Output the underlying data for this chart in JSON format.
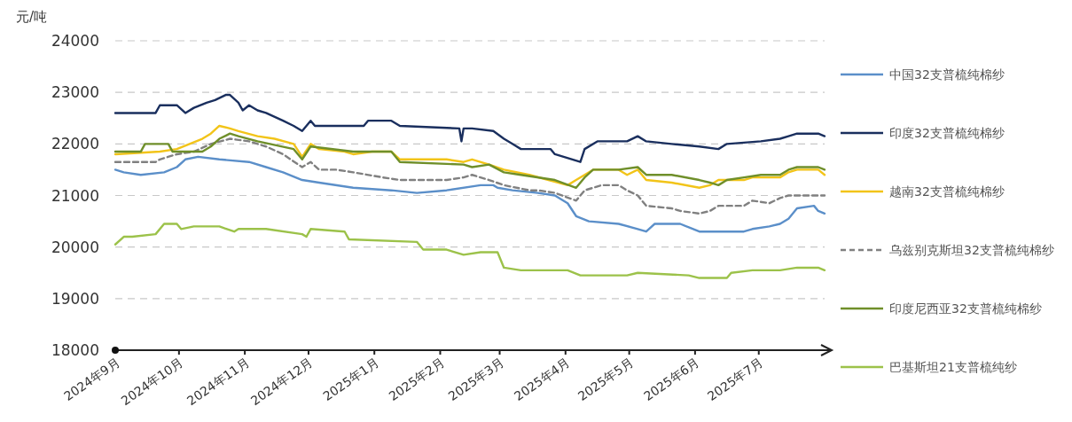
{
  "chart_data": {
    "type": "line",
    "ylabel": "元/吨",
    "ylim": [
      18000,
      24000
    ],
    "yticks": [
      18000,
      19000,
      20000,
      21000,
      22000,
      23000,
      24000
    ],
    "xlim": [
      "2024-09-01",
      "2025-08-01"
    ],
    "xticks": [
      {
        "value": "2024-09",
        "label": "2024年9月"
      },
      {
        "value": "2024-10",
        "label": "2024年10月"
      },
      {
        "value": "2024-11",
        "label": "2024年11月"
      },
      {
        "value": "2024-12",
        "label": "2024年12月"
      },
      {
        "value": "2025-01",
        "label": "2025年1月"
      },
      {
        "value": "2025-02",
        "label": "2025年2月"
      },
      {
        "value": "2025-03",
        "label": "2025年3月"
      },
      {
        "value": "2025-04",
        "label": "2025年4月"
      },
      {
        "value": "2025-05",
        "label": "2025年5月"
      },
      {
        "value": "2025-06",
        "label": "2025年6月"
      },
      {
        "value": "2025-07",
        "label": "2025年7月"
      }
    ],
    "grid": "y",
    "legend": "right",
    "series": [
      {
        "name": "中国32支普梳纯棉纱",
        "color": "#5b8fc9",
        "line_style": "solid",
        "x": [
          "2024-09-01",
          "2024-09-05",
          "2024-09-13",
          "2024-09-24",
          "2024-09-30",
          "2024-10-04",
          "2024-10-10",
          "2024-10-20",
          "2024-11-03",
          "2024-11-11",
          "2024-11-19",
          "2024-11-28",
          "2024-12-06",
          "2024-12-22",
          "2025-01-09",
          "2025-01-21",
          "2025-02-04",
          "2025-02-20",
          "2025-02-26",
          "2025-02-28",
          "2025-03-07",
          "2025-03-19",
          "2025-03-27",
          "2025-04-02",
          "2025-04-06",
          "2025-04-12",
          "2025-04-26",
          "2025-05-05",
          "2025-05-09",
          "2025-05-13",
          "2025-05-25",
          "2025-06-03",
          "2025-06-24",
          "2025-06-28",
          "2025-07-06",
          "2025-07-11",
          "2025-07-15",
          "2025-07-19",
          "2025-07-27",
          "2025-07-29",
          "2025-08-01"
        ],
        "values": [
          21500,
          21450,
          21400,
          21450,
          21550,
          21700,
          21750,
          21700,
          21650,
          21550,
          21450,
          21300,
          21250,
          21150,
          21100,
          21050,
          21100,
          21200,
          21200,
          21150,
          21100,
          21050,
          21000,
          20850,
          20600,
          20500,
          20450,
          20350,
          20300,
          20450,
          20450,
          20300,
          20300,
          20350,
          20400,
          20450,
          20550,
          20750,
          20800,
          20700,
          20650
        ]
      },
      {
        "name": "印度32支普梳纯棉纱",
        "color": "#1a2f5e",
        "line_style": "solid",
        "x": [
          "2024-09-01",
          "2024-09-20",
          "2024-09-22",
          "2024-09-30",
          "2024-10-04",
          "2024-10-08",
          "2024-10-14",
          "2024-10-18",
          "2024-10-23",
          "2024-10-25",
          "2024-10-29",
          "2024-10-31",
          "2024-11-03",
          "2024-11-07",
          "2024-11-11",
          "2024-11-19",
          "2024-11-24",
          "2024-11-28",
          "2024-12-02",
          "2024-12-04",
          "2024-12-27",
          "2024-12-29",
          "2025-01-09",
          "2025-01-13",
          "2025-02-10",
          "2025-02-11",
          "2025-02-12",
          "2025-02-16",
          "2025-02-26",
          "2025-03-03",
          "2025-03-07",
          "2025-03-11",
          "2025-03-25",
          "2025-03-27",
          "2025-04-08",
          "2025-04-10",
          "2025-04-16",
          "2025-04-30",
          "2025-05-05",
          "2025-05-09",
          "2025-05-21",
          "2025-06-03",
          "2025-06-12",
          "2025-06-16",
          "2025-07-02",
          "2025-07-11",
          "2025-07-15",
          "2025-07-19",
          "2025-07-29",
          "2025-08-01"
        ],
        "values": [
          22600,
          22600,
          22750,
          22750,
          22600,
          22700,
          22800,
          22850,
          22950,
          22950,
          22800,
          22650,
          22750,
          22650,
          22600,
          22450,
          22350,
          22250,
          22450,
          22350,
          22350,
          22450,
          22450,
          22350,
          22300,
          22050,
          22300,
          22300,
          22250,
          22100,
          22000,
          21900,
          21900,
          21800,
          21650,
          21900,
          22050,
          22050,
          22150,
          22050,
          22000,
          21950,
          21900,
          22000,
          22050,
          22100,
          22150,
          22200,
          22200,
          22150
        ]
      },
      {
        "name": "越南32支普梳纯棉纱",
        "color": "#f2c419",
        "line_style": "solid",
        "x": [
          "2024-09-01",
          "2024-09-22",
          "2024-09-30",
          "2024-10-12",
          "2024-10-16",
          "2024-10-20",
          "2024-10-25",
          "2024-10-29",
          "2024-11-07",
          "2024-11-15",
          "2024-11-24",
          "2024-11-28",
          "2024-12-02",
          "2024-12-06",
          "2024-12-18",
          "2024-12-22",
          "2024-12-31",
          "2025-01-09",
          "2025-01-13",
          "2025-02-04",
          "2025-02-12",
          "2025-02-16",
          "2025-02-24",
          "2025-03-03",
          "2025-03-15",
          "2025-04-02",
          "2025-04-06",
          "2025-04-10",
          "2025-04-14",
          "2025-04-26",
          "2025-04-30",
          "2025-05-05",
          "2025-05-09",
          "2025-05-21",
          "2025-06-03",
          "2025-06-08",
          "2025-06-12",
          "2025-06-24",
          "2025-06-28",
          "2025-07-11",
          "2025-07-15",
          "2025-07-19",
          "2025-07-29",
          "2025-08-01"
        ],
        "values": [
          21800,
          21850,
          21900,
          22100,
          22200,
          22350,
          22300,
          22250,
          22150,
          22100,
          22000,
          21750,
          22000,
          21900,
          21850,
          21800,
          21850,
          21850,
          21700,
          21700,
          21650,
          21700,
          21600,
          21500,
          21400,
          21200,
          21300,
          21400,
          21500,
          21500,
          21400,
          21500,
          21300,
          21250,
          21150,
          21200,
          21300,
          21300,
          21350,
          21350,
          21450,
          21500,
          21500,
          21400
        ]
      },
      {
        "name": "乌兹别克斯坦32支普梳纯棉纱",
        "color": "#808080",
        "line_style": "dashed",
        "x": [
          "2024-09-01",
          "2024-09-20",
          "2024-09-22",
          "2024-09-30",
          "2024-10-08",
          "2024-10-16",
          "2024-10-25",
          "2024-11-03",
          "2024-11-11",
          "2024-11-19",
          "2024-11-28",
          "2024-12-02",
          "2024-12-06",
          "2024-12-14",
          "2024-12-22",
          "2025-01-05",
          "2025-01-13",
          "2025-02-04",
          "2025-02-12",
          "2025-02-16",
          "2025-02-24",
          "2025-03-03",
          "2025-03-15",
          "2025-03-19",
          "2025-03-27",
          "2025-04-06",
          "2025-04-10",
          "2025-04-18",
          "2025-04-26",
          "2025-04-30",
          "2025-05-05",
          "2025-05-09",
          "2025-05-21",
          "2025-05-25",
          "2025-06-03",
          "2025-06-08",
          "2025-06-12",
          "2025-06-24",
          "2025-06-28",
          "2025-07-06",
          "2025-07-11",
          "2025-07-15",
          "2025-08-01"
        ],
        "values": [
          21650,
          21650,
          21700,
          21800,
          21850,
          22000,
          22100,
          22050,
          21950,
          21800,
          21550,
          21650,
          21500,
          21500,
          21450,
          21350,
          21300,
          21300,
          21350,
          21400,
          21300,
          21200,
          21100,
          21100,
          21050,
          20900,
          21100,
          21200,
          21200,
          21100,
          21000,
          20800,
          20750,
          20700,
          20650,
          20700,
          20800,
          20800,
          20900,
          20850,
          20950,
          21000,
          21000
        ]
      },
      {
        "name": "印度尼西亚32支普梳纯棉纱",
        "color": "#6f8f2a",
        "line_style": "solid",
        "x": [
          "2024-09-01",
          "2024-09-13",
          "2024-09-15",
          "2024-09-26",
          "2024-09-28",
          "2024-10-12",
          "2024-10-16",
          "2024-10-20",
          "2024-10-25",
          "2024-10-29",
          "2024-11-07",
          "2024-11-24",
          "2024-11-28",
          "2024-12-02",
          "2024-12-22",
          "2025-01-09",
          "2025-01-13",
          "2025-02-12",
          "2025-02-16",
          "2025-02-24",
          "2025-03-03",
          "2025-03-11",
          "2025-03-27",
          "2025-04-06",
          "2025-04-10",
          "2025-04-14",
          "2025-04-26",
          "2025-05-05",
          "2025-05-09",
          "2025-05-21",
          "2025-06-03",
          "2025-06-08",
          "2025-06-12",
          "2025-06-16",
          "2025-06-24",
          "2025-07-02",
          "2025-07-11",
          "2025-07-15",
          "2025-07-19",
          "2025-07-29",
          "2025-08-01"
        ],
        "values": [
          21850,
          21850,
          22000,
          22000,
          21850,
          21850,
          21950,
          22100,
          22200,
          22150,
          22050,
          21900,
          21700,
          21950,
          21850,
          21850,
          21650,
          21600,
          21550,
          21600,
          21450,
          21400,
          21300,
          21150,
          21350,
          21500,
          21500,
          21550,
          21400,
          21400,
          21300,
          21250,
          21200,
          21300,
          21350,
          21400,
          21400,
          21500,
          21550,
          21550,
          21500
        ]
      },
      {
        "name": "巴基斯坦21支普梳纯纱",
        "color": "#9cc24a",
        "line_style": "solid",
        "x": [
          "2024-09-01",
          "2024-09-05",
          "2024-09-09",
          "2024-09-20",
          "2024-09-24",
          "2024-09-30",
          "2024-10-02",
          "2024-10-08",
          "2024-10-20",
          "2024-10-27",
          "2024-10-29",
          "2024-11-11",
          "2024-11-28",
          "2024-11-30",
          "2024-12-02",
          "2024-12-18",
          "2024-12-20",
          "2025-01-21",
          "2025-01-24",
          "2025-02-04",
          "2025-02-12",
          "2025-02-20",
          "2025-02-28",
          "2025-03-03",
          "2025-03-11",
          "2025-04-02",
          "2025-04-08",
          "2025-04-30",
          "2025-05-05",
          "2025-05-29",
          "2025-06-03",
          "2025-06-16",
          "2025-06-18",
          "2025-06-28",
          "2025-07-11",
          "2025-07-19",
          "2025-07-29",
          "2025-08-01"
        ],
        "values": [
          20050,
          20200,
          20200,
          20250,
          20450,
          20450,
          20350,
          20400,
          20400,
          20300,
          20350,
          20350,
          20250,
          20200,
          20350,
          20300,
          20150,
          20100,
          19950,
          19950,
          19850,
          19900,
          19900,
          19600,
          19550,
          19550,
          19450,
          19450,
          19500,
          19450,
          19400,
          19400,
          19500,
          19550,
          19550,
          19600,
          19600,
          19550
        ]
      }
    ]
  }
}
